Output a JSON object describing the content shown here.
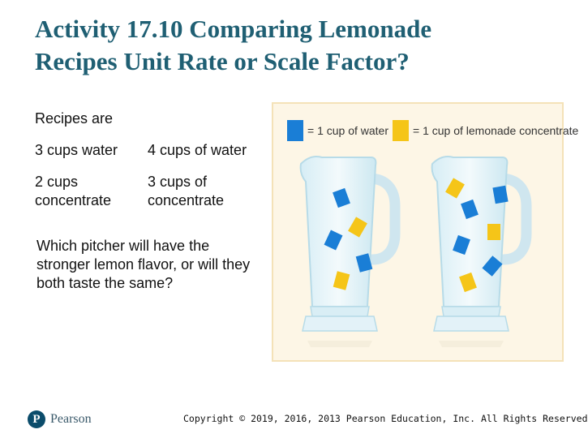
{
  "title": {
    "line1": "Activity 17.10 Comparing Lemonade",
    "line2": "Recipes Unit Rate or Scale Factor?"
  },
  "recipes": {
    "intro": "Recipes are",
    "pitcher_a": {
      "water": "3 cups water",
      "concentrate": "2 cups concentrate"
    },
    "pitcher_b": {
      "water": "4 cups of water",
      "concentrate": "3 cups of concentrate"
    }
  },
  "question": "Which pitcher will have the stronger lemon flavor, or will they both taste the same?",
  "figure": {
    "legend": {
      "water": {
        "label": "= 1 cup of water",
        "color": "#1a7ed6"
      },
      "concentrate": {
        "label": "= 1 cup of lemonade concentrate",
        "color": "#f5c518"
      }
    },
    "pitcher_left": {
      "water_cups": 3,
      "concentrate_cups": 2
    },
    "pitcher_right": {
      "water_cups": 4,
      "concentrate_cups": 3
    }
  },
  "footer": {
    "logo_mark": "P",
    "logo_word": "Pearson",
    "copyright": "Copyright © 2019, 2016, 2013 Pearson Education, Inc. All Rights Reserved"
  }
}
